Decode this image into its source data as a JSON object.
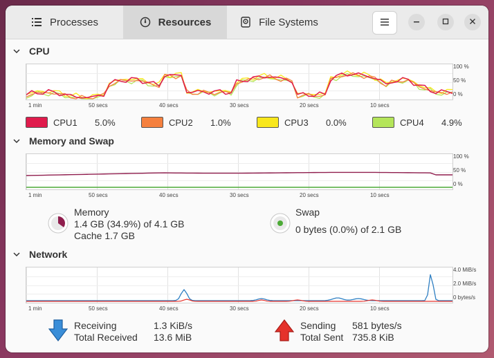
{
  "tabs": [
    {
      "label": "Processes",
      "icon": "list-icon"
    },
    {
      "label": "Resources",
      "icon": "gauge-icon"
    },
    {
      "label": "File Systems",
      "icon": "disk-icon"
    }
  ],
  "active_tab": "Resources",
  "cpu": {
    "title": "CPU",
    "y_ticks": [
      "100 %",
      "50 %",
      "0 %"
    ],
    "x_ticks": [
      "1 min",
      "50 secs",
      "40 secs",
      "30 secs",
      "20 secs",
      "10 secs"
    ],
    "cores": [
      {
        "name": "CPU1",
        "value": "5.0%",
        "color": "#e01b4c"
      },
      {
        "name": "CPU2",
        "value": "1.0%",
        "color": "#f5803e"
      },
      {
        "name": "CPU3",
        "value": "0.0%",
        "color": "#f8e71c"
      },
      {
        "name": "CPU4",
        "value": "4.9%",
        "color": "#b4e55a"
      }
    ]
  },
  "memory": {
    "title": "Memory and Swap",
    "y_ticks": [
      "100 %",
      "50 %",
      "0 %"
    ],
    "x_ticks": [
      "1 min",
      "50 secs",
      "40 secs",
      "30 secs",
      "20 secs",
      "10 secs"
    ],
    "memory_label": "Memory",
    "memory_usage": "1.4 GB (34.9%) of 4.1 GB",
    "memory_cache": "Cache 1.7 GB",
    "memory_fraction": 0.349,
    "swap_label": "Swap",
    "swap_usage": "0 bytes (0.0%) of 2.1 GB",
    "swap_fraction": 0.0
  },
  "network": {
    "title": "Network",
    "y_ticks": [
      "4.0 MiB/s",
      "2.0 MiB/s",
      "0 bytes/s"
    ],
    "x_ticks": [
      "1 min",
      "50 secs",
      "40 secs",
      "30 secs",
      "20 secs",
      "10 secs"
    ],
    "receiving_label": "Receiving",
    "receiving_value": "1.3 KiB/s",
    "total_received_label": "Total Received",
    "total_received_value": "13.6 MiB",
    "sending_label": "Sending",
    "sending_value": "581 bytes/s",
    "total_sent_label": "Total Sent",
    "total_sent_value": "735.8 KiB"
  }
}
